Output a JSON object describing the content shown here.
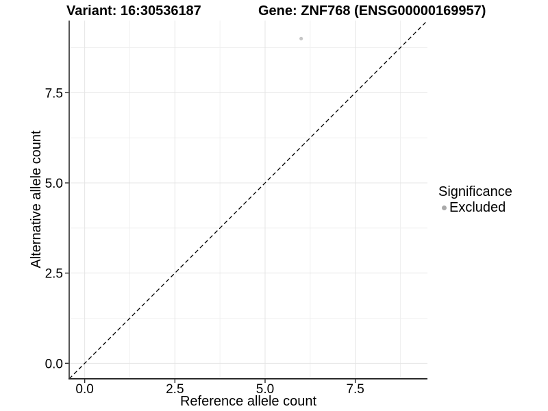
{
  "header": {
    "variant_title": "Variant: 16:30536187",
    "gene_title": "Gene: ZNF768 (ENSG00000169957)"
  },
  "chart_data": {
    "type": "scatter",
    "xlabel": "Reference allele count",
    "ylabel": "Alternative allele count",
    "xlim": [
      -0.43,
      9.5
    ],
    "ylim": [
      -0.43,
      9.5
    ],
    "x_major_ticks": [
      0,
      2.5,
      5,
      7.5
    ],
    "y_major_ticks": [
      0,
      2.5,
      5,
      7.5
    ],
    "x_tick_labels": [
      "0.0",
      "2.5",
      "5.0",
      "7.5"
    ],
    "y_tick_labels": [
      "0.0",
      "2.5",
      "5.0",
      "7.5"
    ],
    "x_minor_ticks": [
      1.25,
      3.75,
      6.25,
      8.75
    ],
    "y_minor_ticks": [
      1.25,
      3.75,
      6.25,
      8.75
    ],
    "grid": "major+minor",
    "series": [
      {
        "name": "Excluded",
        "points": [
          {
            "x": 6,
            "y": 9
          }
        ],
        "color": "#c6c6c6"
      }
    ],
    "identity_line": {
      "slope": 1,
      "intercept": 0,
      "style": "dashed",
      "color": "#000000"
    },
    "legend": {
      "title": "Significance",
      "position": "right",
      "entries": [
        {
          "label": "Excluded",
          "marker": "circle",
          "color": "#a9a9a9"
        }
      ]
    }
  },
  "colors": {
    "background": "#ffffff",
    "major_grid": "#e4e4e4",
    "minor_grid": "#f0f0f0",
    "axis_line": "#2a2a2a",
    "tick_text": "#000000",
    "point": "#c6c6c6",
    "legend_dot": "#a9a9a9"
  }
}
